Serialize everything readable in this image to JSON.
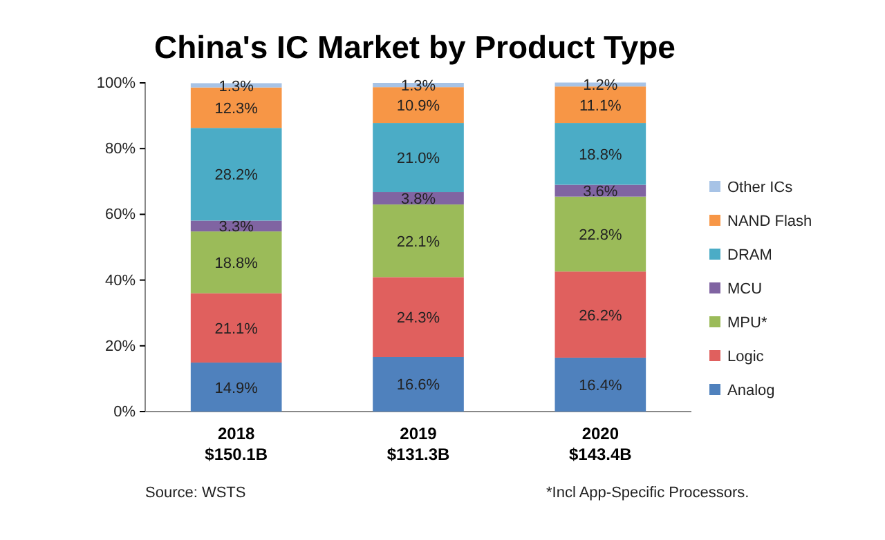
{
  "chart_data": {
    "type": "bar",
    "stacked": true,
    "title": "China's IC Market by Product Type",
    "categories": [
      "2018\n$150.1B",
      "2019\n$131.3B",
      "2020\n$143.4B"
    ],
    "series": [
      {
        "name": "Analog",
        "color": "#4f81bd",
        "values": [
          14.9,
          16.6,
          16.4
        ],
        "value_labels": [
          "14.9%",
          "16.6%",
          "16.4%"
        ]
      },
      {
        "name": "Logic",
        "color": "#e0605e",
        "values": [
          21.1,
          24.3,
          26.2
        ],
        "value_labels": [
          "21.1%",
          "24.3%",
          "26.2%"
        ]
      },
      {
        "name": "MPU*",
        "color": "#9bbb59",
        "values": [
          18.8,
          22.1,
          22.8
        ],
        "value_labels": [
          "18.8%",
          "22.1%",
          "22.8%"
        ]
      },
      {
        "name": "MCU",
        "color": "#8064a2",
        "values": [
          3.3,
          3.8,
          3.6
        ],
        "value_labels": [
          "3.3%",
          "3.8%",
          "3.6%"
        ]
      },
      {
        "name": "DRAM",
        "color": "#4bacc6",
        "values": [
          28.2,
          21.0,
          18.8
        ],
        "value_labels": [
          "28.2%",
          "21.0%",
          "18.8%"
        ]
      },
      {
        "name": "NAND Flash",
        "color": "#f79646",
        "values": [
          12.3,
          10.9,
          11.1
        ],
        "value_labels": [
          "12.3%",
          "10.9%",
          "11.1%"
        ]
      },
      {
        "name": "Other ICs",
        "color": "#a7c3e6",
        "values": [
          1.3,
          1.3,
          1.2
        ],
        "value_labels": [
          "1.3%",
          "1.3%",
          "1.2%"
        ]
      }
    ],
    "ylim": [
      0,
      100
    ],
    "yticks": [
      {
        "value": 0,
        "label": "0%"
      },
      {
        "value": 20,
        "label": "20%"
      },
      {
        "value": 40,
        "label": "40%"
      },
      {
        "value": 60,
        "label": "60%"
      },
      {
        "value": 80,
        "label": "80%"
      },
      {
        "value": 100,
        "label": "100%"
      }
    ],
    "legend": "right",
    "annotations": [
      "Source:  WSTS",
      "*Incl App-Specific Processors."
    ]
  }
}
